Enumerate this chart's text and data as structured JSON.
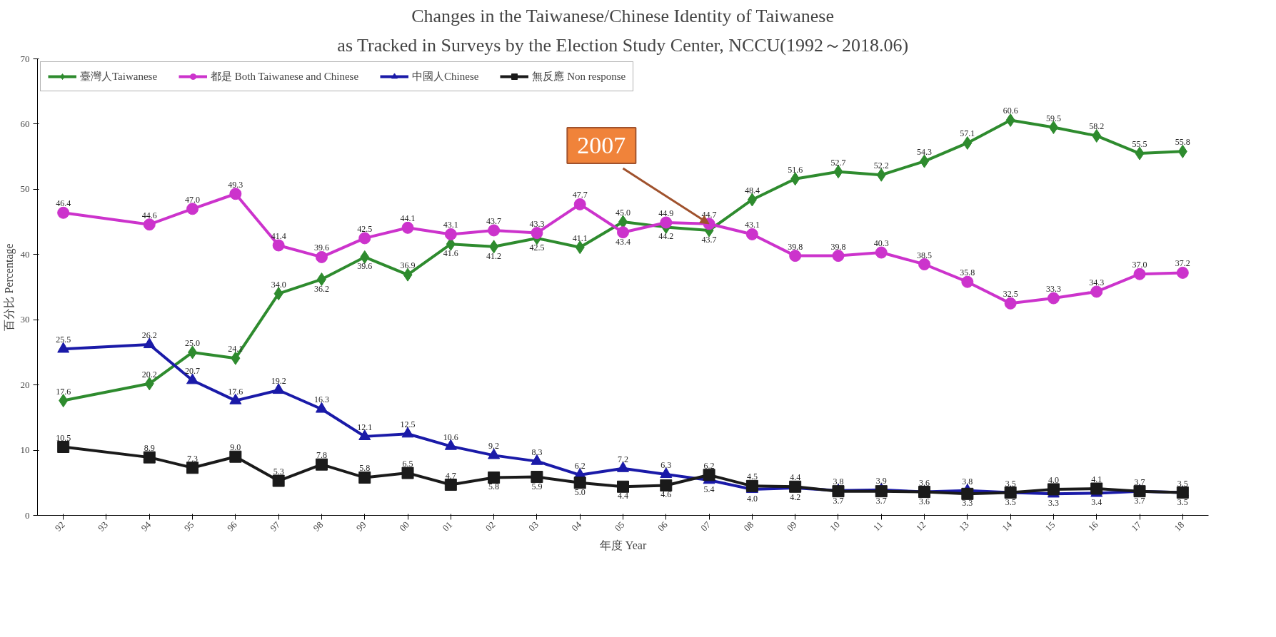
{
  "chart_data": {
    "type": "line",
    "title": "Changes in the Taiwanese/Chinese Identity of Taiwanese",
    "subtitle": "as Tracked in Surveys by the Election Study Center, NCCU(1992～2018.06)",
    "xlabel": "年度 Year",
    "ylabel": "百分比 Percentage",
    "categories": [
      "92",
      "93",
      "94",
      "95",
      "96",
      "97",
      "98",
      "99",
      "00",
      "01",
      "02",
      "03",
      "04",
      "05",
      "06",
      "07",
      "08",
      "09",
      "10",
      "11",
      "12",
      "13",
      "14",
      "15",
      "16",
      "17",
      "18"
    ],
    "series": [
      {
        "name": "臺灣人Taiwanese",
        "color": "#2e8b2e",
        "marker": "diamond",
        "values": [
          17.6,
          null,
          20.2,
          25.0,
          24.1,
          34.0,
          36.2,
          39.6,
          36.9,
          41.6,
          41.2,
          42.5,
          41.1,
          45.0,
          44.2,
          43.7,
          48.4,
          51.6,
          52.7,
          52.2,
          54.3,
          57.1,
          60.6,
          59.5,
          58.2,
          55.5,
          55.8
        ],
        "value_labels": [
          "17.6",
          null,
          "20.2",
          "25.0",
          "24.1",
          "34.0",
          "36.2",
          "39.6",
          "36.9",
          "41.6",
          "41.2",
          "42.5",
          "41.1",
          "45.0",
          "44.2",
          "43.7",
          "48.4",
          "51.6",
          "52.7",
          "52.2",
          "54.3",
          "57.1",
          "60.6",
          "59.5",
          "58.2",
          "55.5",
          "55.8"
        ]
      },
      {
        "name": "都是 Both Taiwanese and Chinese",
        "color": "#cc33cc",
        "marker": "circle",
        "values": [
          46.4,
          null,
          44.6,
          47.0,
          49.3,
          41.4,
          39.6,
          42.5,
          44.1,
          43.1,
          43.7,
          43.3,
          47.7,
          43.4,
          44.9,
          44.7,
          43.1,
          39.8,
          39.8,
          40.3,
          38.5,
          35.8,
          32.5,
          33.3,
          34.3,
          37.0,
          37.2
        ],
        "value_labels": [
          "46.4",
          null,
          "44.6",
          "47.0",
          "49.3",
          "41.4",
          "39.6",
          "42.5",
          "44.1",
          "43.1",
          "43.7",
          "43.3",
          "47.7",
          "43.4",
          "44.9",
          "44.7",
          "43.1",
          "39.8",
          "39.8",
          "40.3",
          "38.5",
          "35.8",
          "32.5",
          "33.3",
          "34.3",
          "37.0",
          "37.2"
        ]
      },
      {
        "name": "中國人Chinese",
        "color": "#1a1aa8",
        "marker": "triangle",
        "values": [
          25.5,
          null,
          26.2,
          20.7,
          17.6,
          19.2,
          16.3,
          12.1,
          12.5,
          10.6,
          9.2,
          8.3,
          6.2,
          7.2,
          6.3,
          5.4,
          4.0,
          4.2,
          3.8,
          3.9,
          3.6,
          3.8,
          3.5,
          3.3,
          3.4,
          3.7,
          3.5
        ],
        "value_labels": [
          "25.5",
          null,
          "26.2",
          "20.7",
          "17.6",
          "19.2",
          "16.3",
          "12.1",
          "12.5",
          "10.6",
          "9.2",
          "8.3",
          "6.2",
          "7.2",
          "6.3",
          "5.4",
          "4.0",
          "4.2",
          "3.8",
          "3.9",
          "3.6",
          "3.8",
          "3.5",
          "3.3",
          "3.4",
          "3.7",
          "3.5"
        ]
      },
      {
        "name": "無反應 Non response",
        "color": "#1a1a1a",
        "marker": "square",
        "values": [
          10.5,
          null,
          8.9,
          7.3,
          9.0,
          5.3,
          7.8,
          5.8,
          6.5,
          4.7,
          5.8,
          5.9,
          5.0,
          4.4,
          4.6,
          6.2,
          4.5,
          4.4,
          3.7,
          3.7,
          3.6,
          3.3,
          3.5,
          4.0,
          4.1,
          3.7,
          3.5
        ],
        "value_labels": [
          "10.5",
          null,
          "8.9",
          "7.3",
          "9.0",
          "5.3",
          "7.8",
          "5.8",
          "6.5",
          "4.7",
          "5.8",
          "5.9",
          "5.0",
          "4.4",
          "4.6",
          "6.2",
          "4.5",
          "4.4",
          "3.7",
          "3.7",
          "3.6",
          "3.3",
          "3.5",
          "4.0",
          "4.1",
          "3.7",
          "3.5"
        ]
      }
    ],
    "ylim": [
      0,
      70
    ],
    "yticks": [
      0,
      10,
      20,
      30,
      40,
      50,
      60,
      70
    ],
    "grid": false,
    "legend": "top left",
    "annotations": [
      {
        "text": "2007",
        "x": "07",
        "y": 44.7
      }
    ]
  }
}
